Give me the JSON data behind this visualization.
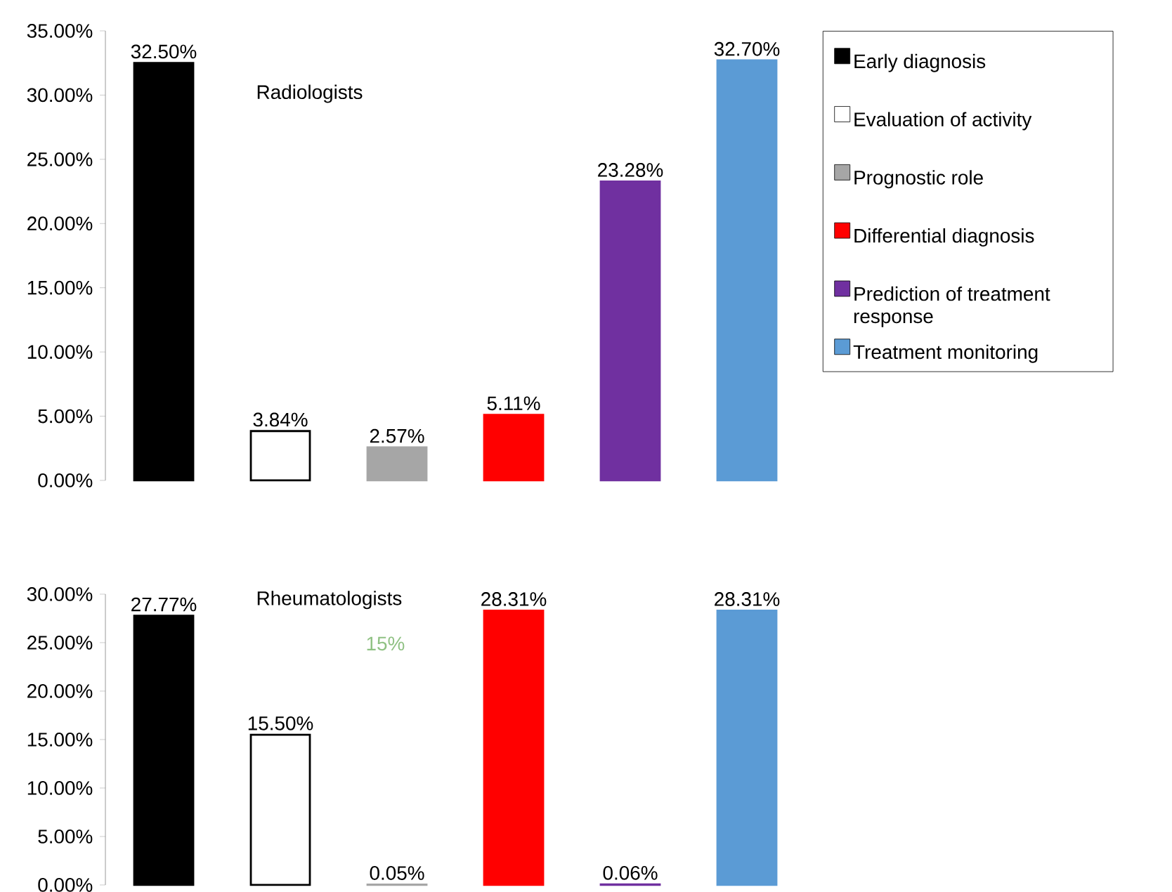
{
  "chart_data": [
    {
      "type": "bar",
      "stacked": true,
      "title": "Radiologists",
      "categories": [
        null,
        null,
        null,
        null,
        null,
        null
      ],
      "legend": "right",
      "ylim": [
        0,
        35
      ],
      "yticks": [
        {
          "value": 0,
          "label": "0.00%"
        },
        {
          "value": 5,
          "label": "5.00%"
        },
        {
          "value": 10,
          "label": "10.00%"
        },
        {
          "value": 15,
          "label": "15.00%"
        },
        {
          "value": 20,
          "label": "20.00%"
        },
        {
          "value": 25,
          "label": "25.00%"
        },
        {
          "value": 30,
          "label": "30.00%"
        },
        {
          "value": 35,
          "label": "35.00%"
        }
      ],
      "series": [
        {
          "name": "Early diagnosis",
          "color": "#000000",
          "values": [
            32.5,
            null,
            null,
            null,
            null,
            null
          ],
          "value_labels": [
            "32.50%",
            null,
            null,
            null,
            null,
            null
          ]
        },
        {
          "name": "Evaluation of activity",
          "color": "#ffffff",
          "values": [
            null,
            3.84,
            null,
            null,
            null,
            null
          ],
          "value_labels": [
            null,
            "3.84%",
            null,
            null,
            null,
            null
          ]
        },
        {
          "name": "Prognostic role",
          "color": "#a6a6a6",
          "values": [
            null,
            null,
            2.57,
            null,
            null,
            null
          ],
          "value_labels": [
            null,
            null,
            "2.57%",
            null,
            null,
            null
          ]
        },
        {
          "name": "Differential diagnosis",
          "color": "#ff0000",
          "values": [
            null,
            null,
            null,
            5.11,
            null,
            null
          ],
          "value_labels": [
            null,
            null,
            null,
            "5.11%",
            null,
            null
          ]
        },
        {
          "name": "Prediction of treatment response",
          "color": "#7030a0",
          "values": [
            null,
            null,
            null,
            null,
            23.28,
            null
          ],
          "value_labels": [
            null,
            null,
            null,
            null,
            "23.28%",
            null
          ]
        },
        {
          "name": "Treatment monitoring",
          "color": "#5b9bd5",
          "values": [
            null,
            null,
            null,
            null,
            null,
            32.7
          ],
          "value_labels": [
            null,
            null,
            null,
            null,
            null,
            "32.70%"
          ]
        }
      ]
    },
    {
      "type": "bar",
      "stacked": true,
      "title": "Rheumatologists",
      "categories": [
        null,
        null,
        null,
        null,
        null,
        null
      ],
      "annotations": [
        "15%"
      ],
      "ylim": [
        0,
        30
      ],
      "yticks": [
        {
          "value": 0,
          "label": "0.00%"
        },
        {
          "value": 5,
          "label": "5.00%"
        },
        {
          "value": 10,
          "label": "10.00%"
        },
        {
          "value": 15,
          "label": "15.00%"
        },
        {
          "value": 20,
          "label": "20.00%"
        },
        {
          "value": 25,
          "label": "25.00%"
        },
        {
          "value": 30,
          "label": "30.00%"
        }
      ],
      "series": [
        {
          "color": "#000000",
          "values": [
            27.77,
            null,
            null,
            null,
            null,
            null
          ],
          "value_labels": [
            "27.77%",
            null,
            null,
            null,
            null,
            null
          ]
        },
        {
          "color": "#ffffff",
          "values": [
            null,
            15.5,
            null,
            null,
            null,
            null
          ],
          "value_labels": [
            null,
            "15.50%",
            null,
            null,
            null,
            null
          ]
        },
        {
          "color": "#a6a6a6",
          "values": [
            null,
            null,
            0.05,
            null,
            null,
            null
          ],
          "value_labels": [
            null,
            null,
            "0.05%",
            null,
            null,
            null
          ]
        },
        {
          "color": "#ff0000",
          "values": [
            null,
            null,
            null,
            28.31,
            null,
            null
          ],
          "value_labels": [
            null,
            null,
            null,
            "28.31%",
            null,
            null
          ]
        },
        {
          "color": "#7030a0",
          "values": [
            null,
            null,
            null,
            null,
            0.06,
            null
          ],
          "value_labels": [
            null,
            null,
            null,
            null,
            "0.06%",
            null
          ]
        },
        {
          "color": "#5b9bd5",
          "values": [
            null,
            null,
            null,
            null,
            null,
            28.31
          ],
          "value_labels": [
            null,
            null,
            null,
            null,
            null,
            "28.31%"
          ]
        }
      ]
    }
  ]
}
